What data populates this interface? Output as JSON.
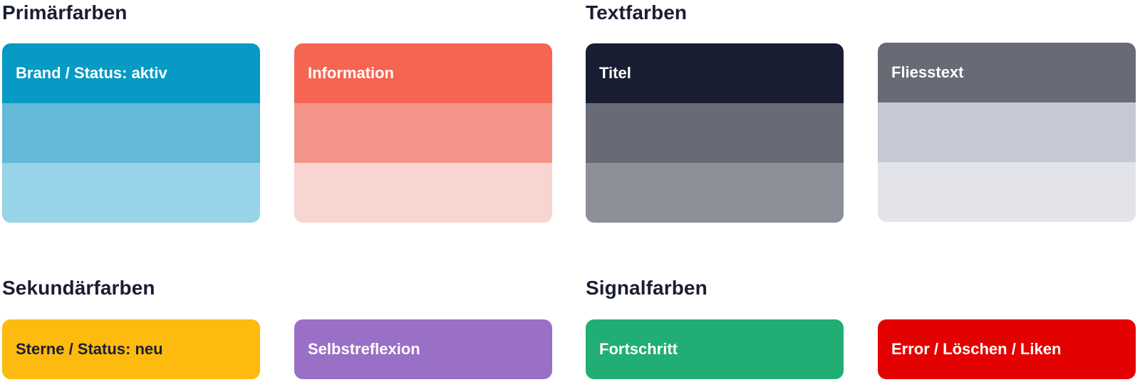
{
  "sections": {
    "primary": {
      "title": "Primärfarben",
      "cards": [
        {
          "label": "Brand / Status: aktiv",
          "shades": [
            "#069AC4",
            "#64B8D8",
            "#98D3E9"
          ]
        },
        {
          "label": "Information",
          "shades": [
            "#F66551",
            "#F4958A",
            "#F8D5D0"
          ]
        }
      ]
    },
    "text": {
      "title": "Textfarben",
      "cards": [
        {
          "label": "Titel",
          "shades": [
            "#1A1E33",
            "#686A76",
            "#8D9099"
          ]
        },
        {
          "label": "Fliesstext",
          "shades": [
            "#686A76",
            "#C4C9D4",
            "#E3E4E9"
          ]
        }
      ]
    },
    "secondary": {
      "title": "Sekundärfarben",
      "cards": [
        {
          "label": "Sterne / Status: neu",
          "shades": [
            "#FDBA0F"
          ]
        },
        {
          "label": "Selbstreflexion",
          "shades": [
            "#9A6FC6"
          ]
        }
      ]
    },
    "signal": {
      "title": "Signalfarben",
      "cards": [
        {
          "label": "Fortschritt",
          "shades": [
            "#21AE74"
          ]
        },
        {
          "label": "Error / Löschen / Liken",
          "shades": [
            "#E30201"
          ]
        }
      ]
    }
  }
}
